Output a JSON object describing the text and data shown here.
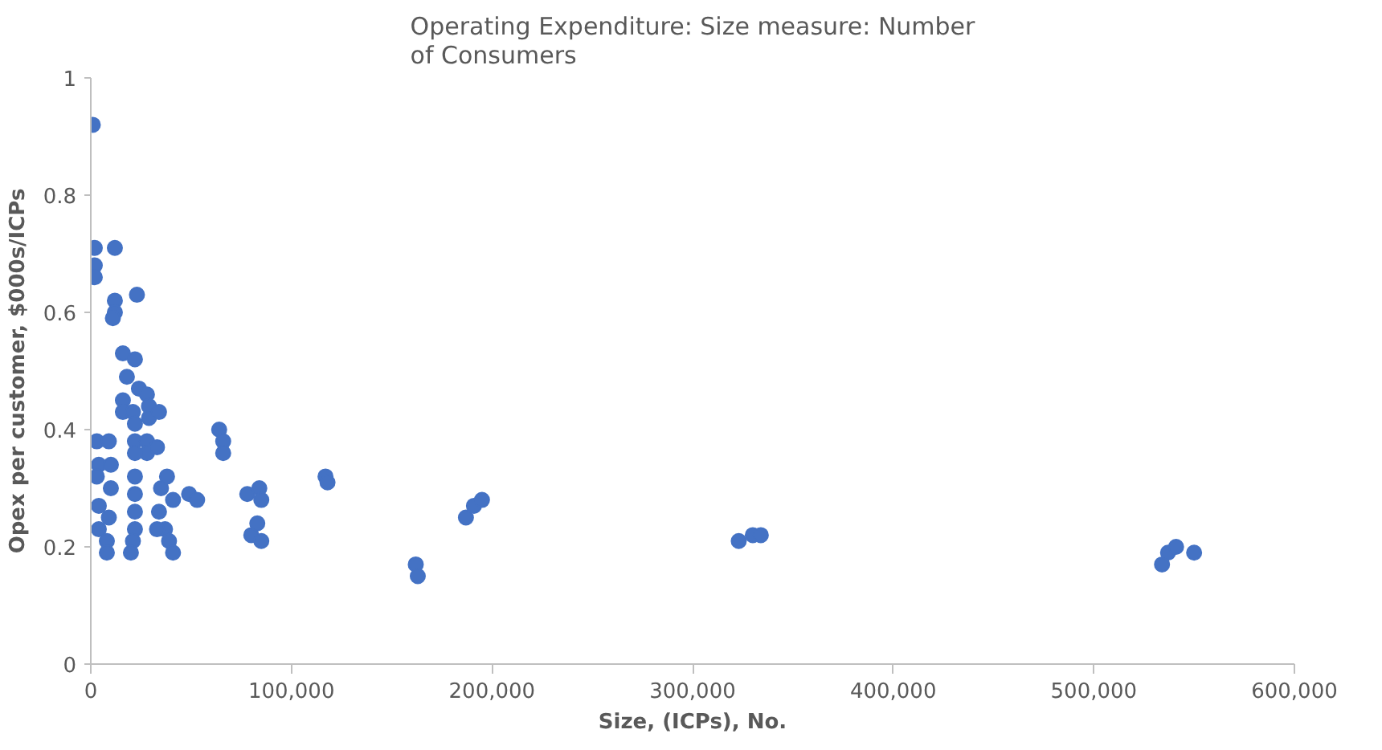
{
  "chart_data": {
    "type": "scatter",
    "title": "Operating Expenditure: Size measure: Number of Consumers",
    "xlabel": "Size, (ICPs), No.",
    "ylabel": "Opex per customer, $000s/ICPs",
    "xlim": [
      0,
      600000
    ],
    "ylim": [
      0,
      1
    ],
    "xticks": [
      0,
      {
        "value": 100000,
        "label": "100,000"
      },
      {
        "value": 200000,
        "label": "200,000"
      },
      {
        "value": 300000,
        "label": "300,000"
      },
      {
        "value": 400000,
        "label": "400,000"
      },
      {
        "value": 500000,
        "label": "500,000"
      },
      {
        "value": 600000,
        "label": "600,000"
      }
    ],
    "yticks": [
      0,
      0.2,
      0.4,
      0.6,
      0.8,
      1
    ],
    "grid": false,
    "marker": "circle",
    "series": [
      {
        "color": "#4472c4",
        "x": [
          1000,
          2000,
          12000,
          2000,
          2000,
          12000,
          12000,
          11000,
          23000,
          16000,
          22000,
          18000,
          24000,
          28000,
          29000,
          16000,
          16000,
          21000,
          22000,
          29000,
          34000,
          22000,
          28000,
          28000,
          33000,
          3000,
          9000,
          4000,
          10000,
          3000,
          10000,
          4000,
          9000,
          4000,
          8000,
          8000,
          22000,
          22000,
          22000,
          22000,
          22000,
          21000,
          20000,
          35000,
          38000,
          34000,
          41000,
          37000,
          39000,
          33000,
          41000,
          49000,
          53000,
          64000,
          66000,
          66000,
          78000,
          84000,
          85000,
          80000,
          85000,
          83000,
          117000,
          118000,
          162000,
          163000,
          187000,
          191000,
          195000,
          323000,
          330000,
          334000,
          534000,
          537000,
          541000,
          550000
        ],
        "values": [
          0.92,
          0.71,
          0.71,
          0.68,
          0.66,
          0.62,
          0.6,
          0.59,
          0.63,
          0.53,
          0.52,
          0.49,
          0.47,
          0.46,
          0.44,
          0.45,
          0.43,
          0.43,
          0.41,
          0.42,
          0.43,
          0.38,
          0.38,
          0.36,
          0.37,
          0.38,
          0.38,
          0.34,
          0.34,
          0.32,
          0.3,
          0.27,
          0.25,
          0.23,
          0.21,
          0.19,
          0.36,
          0.32,
          0.29,
          0.26,
          0.23,
          0.21,
          0.19,
          0.3,
          0.32,
          0.26,
          0.28,
          0.23,
          0.21,
          0.23,
          0.19,
          0.29,
          0.28,
          0.4,
          0.38,
          0.36,
          0.29,
          0.3,
          0.28,
          0.22,
          0.21,
          0.24,
          0.32,
          0.31,
          0.17,
          0.15,
          0.25,
          0.27,
          0.28,
          0.21,
          0.22,
          0.22,
          0.17,
          0.19,
          0.2,
          0.19
        ]
      }
    ]
  }
}
